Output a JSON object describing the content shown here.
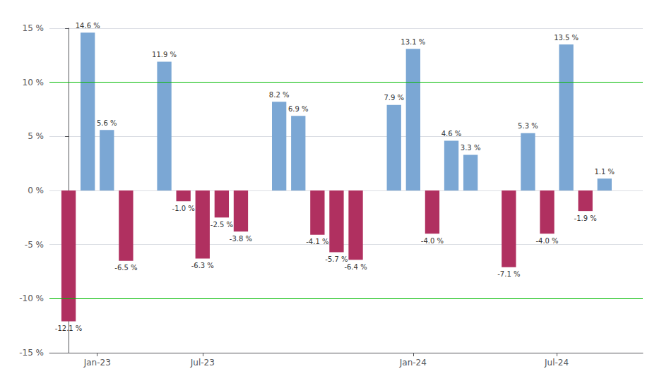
{
  "chart_data": {
    "type": "bar",
    "x": [
      0,
      1,
      2,
      3,
      5,
      6,
      7,
      8,
      9,
      11,
      12,
      13,
      14,
      15,
      17,
      18,
      19,
      20,
      21,
      23,
      24,
      25,
      26,
      27,
      28
    ],
    "values": [
      -12.1,
      14.6,
      5.6,
      -6.5,
      11.9,
      -1.0,
      -6.3,
      -2.5,
      -3.8,
      8.2,
      6.9,
      -4.1,
      -5.7,
      -6.4,
      7.9,
      13.1,
      -4.0,
      4.6,
      3.3,
      -7.1,
      5.3,
      -4.0,
      13.5,
      -1.9,
      1.1
    ],
    "value_labels": [
      "-12.1 %",
      "14.6 %",
      "5.6 %",
      "-6.5 %",
      "11.9 %",
      "-1.0 %",
      "-6.3 %",
      "-2.5 %",
      "-3.8 %",
      "8.2 %",
      "6.9 %",
      "-4.1 %",
      "-5.7 %",
      "-6.4 %",
      "7.9 %",
      "13.1 %",
      "-4.0 %",
      "4.6 %",
      "3.3 %",
      "-7.1 %",
      "5.3 %",
      "-4.0 %",
      "13.5 %",
      "-1.9 %",
      "1.1 %"
    ],
    "colors": [
      "#b03060",
      "#7ba7d4",
      "#7ba7d4",
      "#b03060",
      "#7ba7d4",
      "#b03060",
      "#b03060",
      "#b03060",
      "#b03060",
      "#7ba7d4",
      "#7ba7d4",
      "#b03060",
      "#b03060",
      "#b03060",
      "#7ba7d4",
      "#7ba7d4",
      "#b03060",
      "#7ba7d4",
      "#7ba7d4",
      "#b03060",
      "#7ba7d4",
      "#b03060",
      "#7ba7d4",
      "#b03060",
      "#7ba7d4"
    ],
    "xlim": [
      -1,
      30
    ],
    "xticks": [
      {
        "value": 1.5,
        "label": "Jan-23"
      },
      {
        "value": 7.0,
        "label": "Jul-23"
      },
      {
        "value": 18.0,
        "label": "Jan-24"
      },
      {
        "value": 25.5,
        "label": "Jul-24"
      }
    ],
    "ylim": [
      -15,
      15
    ],
    "yticks": [
      {
        "value": -15,
        "label": "-15 %"
      },
      {
        "value": -10,
        "label": "-10 %"
      },
      {
        "value": -5,
        "label": "-5 %"
      },
      {
        "value": 0,
        "label": "0 %"
      },
      {
        "value": 5,
        "label": "5 %"
      },
      {
        "value": 10,
        "label": "10 %"
      },
      {
        "value": 15,
        "label": "15 %"
      }
    ],
    "hlines": [
      -10.0,
      10.0
    ],
    "hline_color": "#00bb00",
    "grid": true,
    "data_labels": true
  }
}
